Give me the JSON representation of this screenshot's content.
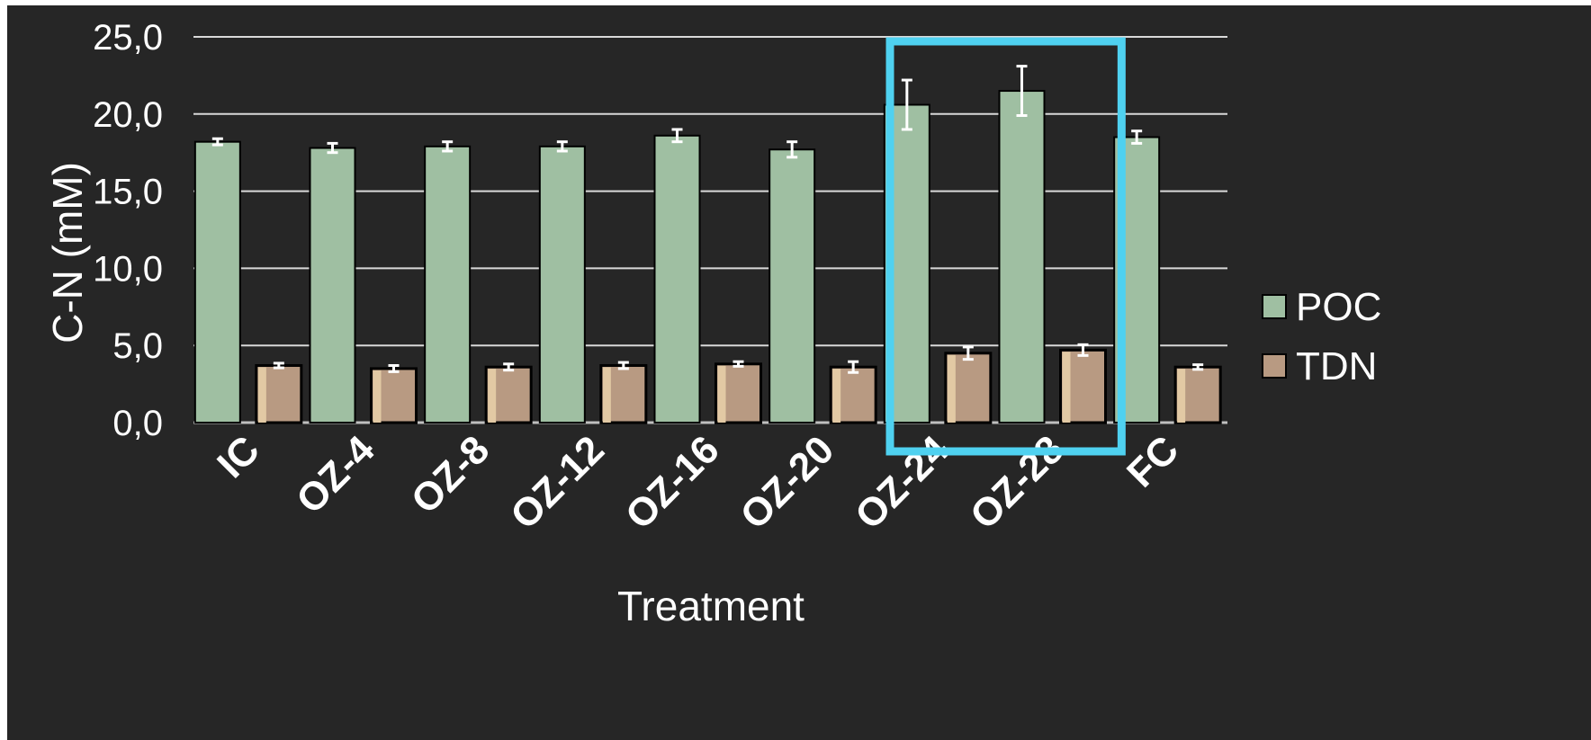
{
  "chart_data": {
    "type": "bar",
    "categories": [
      "IC",
      "OZ-4",
      "OZ-8",
      "OZ-12",
      "OZ-16",
      "OZ-20",
      "OZ-24",
      "OZ-28",
      "FC"
    ],
    "series": [
      {
        "name": "POC",
        "color": "#9fbfa2",
        "values": [
          18.2,
          17.8,
          17.9,
          17.9,
          18.6,
          17.7,
          20.6,
          21.5,
          18.5
        ],
        "errors": [
          0.2,
          0.3,
          0.3,
          0.3,
          0.4,
          0.5,
          1.6,
          1.6,
          0.4
        ]
      },
      {
        "name": "TDN",
        "color": "#b89a82",
        "highlight": "#e2c9a4",
        "values": [
          3.7,
          3.5,
          3.6,
          3.7,
          3.8,
          3.6,
          4.5,
          4.7,
          3.6
        ],
        "errors": [
          0.15,
          0.2,
          0.2,
          0.2,
          0.15,
          0.35,
          0.4,
          0.35,
          0.15
        ]
      }
    ],
    "xlabel": "Treatment",
    "ylabel": "C-N (mM)",
    "ylim": [
      0,
      25
    ],
    "yticks": [
      "0,0",
      "5,0",
      "10,0",
      "15,0",
      "20,0",
      "25,0"
    ],
    "ytick_values": [
      0,
      5,
      10,
      15,
      20,
      25
    ],
    "grid": true,
    "legend_position": "right",
    "highlight_categories": [
      "OZ-24",
      "OZ-28"
    ],
    "highlight_color": "#4fd1f0",
    "background": "#262626",
    "grid_color": "#d9d9d9"
  }
}
